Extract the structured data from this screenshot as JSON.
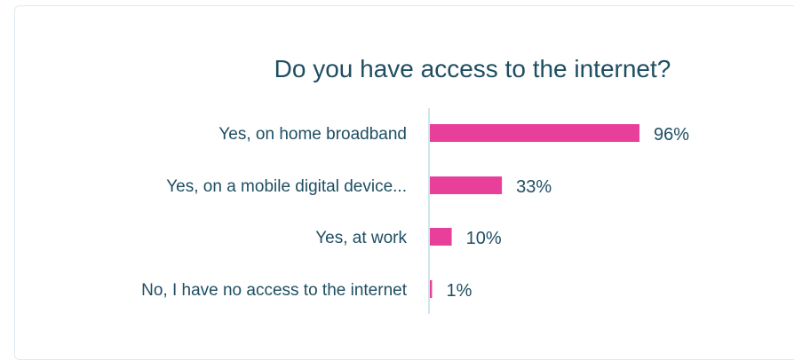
{
  "chart_data": {
    "type": "bar",
    "orientation": "horizontal",
    "title": "Do you have access to the internet?",
    "categories": [
      "Yes, on home broadband",
      "Yes, on a mobile digital device...",
      "Yes, at work",
      "No, I have no access to the internet"
    ],
    "values": [
      96,
      33,
      10,
      1
    ],
    "value_labels": [
      "96%",
      "33%",
      "10%",
      "1%"
    ],
    "xlim": [
      0,
      100
    ],
    "unit": "%",
    "grid": false,
    "legend": "none",
    "bar_color": "#e8409a",
    "axis_color": "#cfe6ea",
    "text_color": "#1e4e62"
  }
}
